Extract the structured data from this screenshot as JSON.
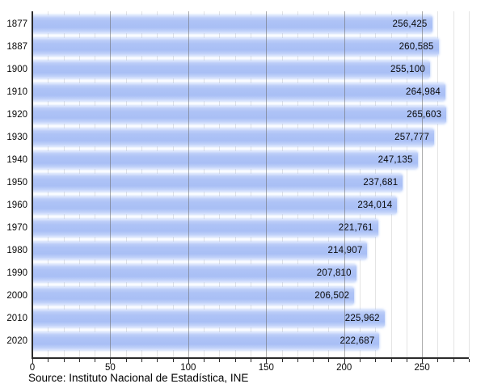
{
  "chart_data": {
    "type": "bar",
    "orientation": "horizontal",
    "title": "",
    "xlabel": "",
    "ylabel": "",
    "categories": [
      "1877",
      "1887",
      "1900",
      "1910",
      "1920",
      "1930",
      "1940",
      "1950",
      "1960",
      "1970",
      "1980",
      "1990",
      "2000",
      "2010",
      "2020"
    ],
    "values": [
      256425,
      260585,
      255100,
      264984,
      265603,
      257777,
      247135,
      237681,
      234014,
      221761,
      214907,
      207810,
      206502,
      225962,
      222687
    ],
    "value_labels": [
      "256,425",
      "260,585",
      "255,100",
      "264,984",
      "265,603",
      "257,777",
      "247,135",
      "237,681",
      "234,014",
      "221,761",
      "214,907",
      "207,810",
      "206,502",
      "225,962",
      "222,687"
    ],
    "x_axis": {
      "unit_of_values": 1000,
      "xlim": [
        0,
        280
      ],
      "minor_step": 10,
      "major_step": 50,
      "tick_labels": [
        "0",
        "50",
        "100",
        "150",
        "200",
        "250"
      ]
    },
    "legend": null,
    "grid": "vertical",
    "colors": {
      "bar": "#aec3f6",
      "bar_highlight": "#dde7fd",
      "grid_minor": "#e4e4e4",
      "grid_major": "#696969",
      "axis": "#2b2b2b",
      "text": "#0a0a0a",
      "background": "#ffffff"
    }
  },
  "footer": {
    "source": "Source: Instituto Nacional de Estadística, INE"
  }
}
